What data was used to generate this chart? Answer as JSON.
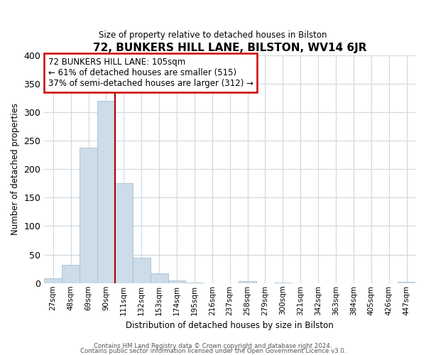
{
  "title": "72, BUNKERS HILL LANE, BILSTON, WV14 6JR",
  "subtitle": "Size of property relative to detached houses in Bilston",
  "xlabel": "Distribution of detached houses by size in Bilston",
  "ylabel": "Number of detached properties",
  "bar_color": "#ccdce8",
  "bar_edge_color": "#a8c0d0",
  "vline_color": "#aa0000",
  "vline_x": 3.5,
  "categories": [
    "27sqm",
    "48sqm",
    "69sqm",
    "90sqm",
    "111sqm",
    "132sqm",
    "153sqm",
    "174sqm",
    "195sqm",
    "216sqm",
    "237sqm",
    "258sqm",
    "279sqm",
    "300sqm",
    "321sqm",
    "342sqm",
    "363sqm",
    "384sqm",
    "405sqm",
    "426sqm",
    "447sqm"
  ],
  "values": [
    8,
    32,
    238,
    320,
    175,
    44,
    17,
    5,
    1,
    0,
    0,
    3,
    0,
    1,
    0,
    0,
    0,
    0,
    0,
    0,
    2
  ],
  "ylim": [
    0,
    400
  ],
  "yticks": [
    0,
    50,
    100,
    150,
    200,
    250,
    300,
    350,
    400
  ],
  "annotation_line1": "72 BUNKERS HILL LANE: 105sqm",
  "annotation_line2": "← 61% of detached houses are smaller (515)",
  "annotation_line3": "37% of semi-detached houses are larger (312) →",
  "footer_line1": "Contains HM Land Registry data © Crown copyright and database right 2024.",
  "footer_line2": "Contains public sector information licensed under the Open Government Licence v3.0.",
  "background_color": "#ffffff",
  "grid_color": "#d0d8e0"
}
